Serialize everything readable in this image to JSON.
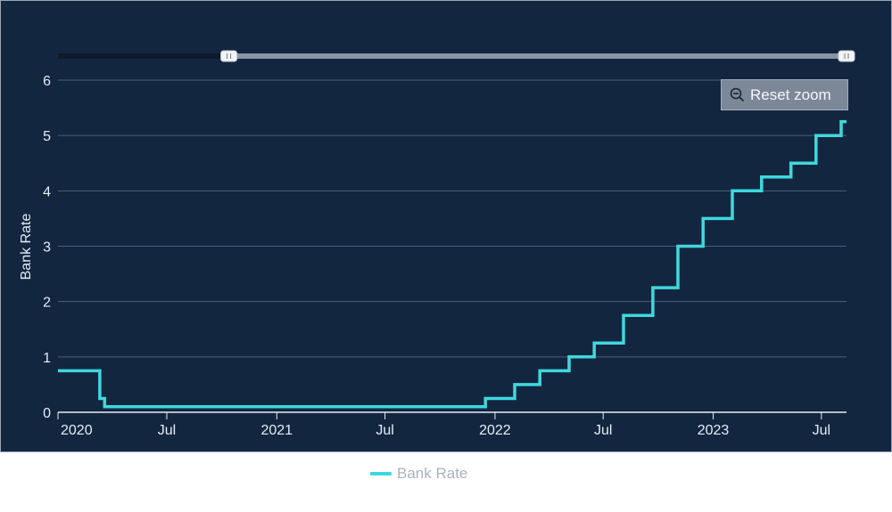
{
  "chart_data": {
    "type": "line",
    "step": "after",
    "ylabel": "Bank Rate",
    "ylim": [
      0,
      6
    ],
    "yticks": [
      0,
      1,
      2,
      3,
      4,
      5,
      6
    ],
    "xlim": [
      "2020-01-01",
      "2023-08-12"
    ],
    "xticks": [
      {
        "date": "2020-01-01",
        "label": "2020"
      },
      {
        "date": "2020-07-01",
        "label": "Jul"
      },
      {
        "date": "2021-01-01",
        "label": "2021"
      },
      {
        "date": "2021-07-01",
        "label": "Jul"
      },
      {
        "date": "2022-01-01",
        "label": "2022"
      },
      {
        "date": "2022-07-01",
        "label": "Jul"
      },
      {
        "date": "2023-01-01",
        "label": "2023"
      },
      {
        "date": "2023-07-01",
        "label": "Jul"
      }
    ],
    "grid": true,
    "legend_position": "bottom-center",
    "series": [
      {
        "name": "Bank Rate",
        "color": "#3fd8dd",
        "points": [
          {
            "x": "2020-01-01",
            "y": 0.75
          },
          {
            "x": "2020-03-11",
            "y": 0.25
          },
          {
            "x": "2020-03-19",
            "y": 0.1
          },
          {
            "x": "2021-12-16",
            "y": 0.25
          },
          {
            "x": "2022-02-03",
            "y": 0.5
          },
          {
            "x": "2022-03-17",
            "y": 0.75
          },
          {
            "x": "2022-05-05",
            "y": 1.0
          },
          {
            "x": "2022-06-16",
            "y": 1.25
          },
          {
            "x": "2022-08-04",
            "y": 1.75
          },
          {
            "x": "2022-09-22",
            "y": 2.25
          },
          {
            "x": "2022-11-03",
            "y": 3.0
          },
          {
            "x": "2022-12-15",
            "y": 3.5
          },
          {
            "x": "2023-02-02",
            "y": 4.0
          },
          {
            "x": "2023-03-23",
            "y": 4.25
          },
          {
            "x": "2023-05-11",
            "y": 4.5
          },
          {
            "x": "2023-06-22",
            "y": 5.0
          },
          {
            "x": "2023-08-03",
            "y": 5.25
          },
          {
            "x": "2023-08-12",
            "y": 5.25
          }
        ]
      }
    ]
  },
  "navigator": {
    "range_start": "2019-01-01",
    "range_end": "2023-08-12"
  },
  "reset_zoom": {
    "label": "Reset zoom",
    "icon": "zoom-out-icon"
  },
  "legend": {
    "label": "Bank Rate",
    "color": "#3fd8dd"
  }
}
